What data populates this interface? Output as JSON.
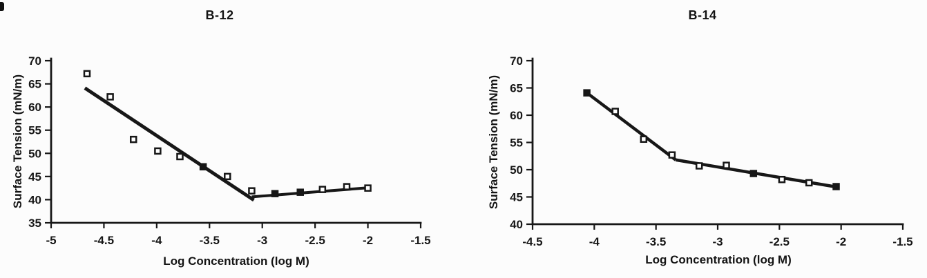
{
  "page": {
    "background": "#fcfcfc",
    "ink": "#171717"
  },
  "chart_data": [
    {
      "type": "scatter",
      "title": "B-12",
      "xlabel": "Log Concentration (log M)",
      "ylabel": "Surface Tension (mN/m)",
      "xlim": [
        -5,
        -1.5
      ],
      "ylim": [
        35,
        70
      ],
      "grid": false,
      "legend": null,
      "xticks": [
        {
          "v": -5,
          "label": "-5"
        },
        {
          "v": -4.5,
          "label": "-4.5"
        },
        {
          "v": -4,
          "label": "-4"
        },
        {
          "v": -3.5,
          "label": "-3.5"
        },
        {
          "v": -3,
          "label": "-3"
        },
        {
          "v": -2.5,
          "label": "-2.5"
        },
        {
          "v": -2,
          "label": "-2"
        },
        {
          "v": -1.5,
          "label": "-1.5"
        }
      ],
      "yticks": [
        {
          "v": 35,
          "label": "35"
        },
        {
          "v": 40,
          "label": "40"
        },
        {
          "v": 45,
          "label": "45"
        },
        {
          "v": 50,
          "label": "50"
        },
        {
          "v": 55,
          "label": "55"
        },
        {
          "v": 60,
          "label": "60"
        },
        {
          "v": 65,
          "label": "65"
        },
        {
          "v": 70,
          "label": "70"
        }
      ],
      "points": [
        {
          "x": -4.66,
          "y": 67.2,
          "filled": false
        },
        {
          "x": -4.44,
          "y": 62.2,
          "filled": false
        },
        {
          "x": -4.22,
          "y": 53.0,
          "filled": false
        },
        {
          "x": -3.99,
          "y": 50.5,
          "filled": false
        },
        {
          "x": -3.78,
          "y": 49.3,
          "filled": false
        },
        {
          "x": -3.56,
          "y": 47.1,
          "filled": true
        },
        {
          "x": -3.33,
          "y": 45.0,
          "filled": false
        },
        {
          "x": -3.1,
          "y": 41.9,
          "filled": false
        },
        {
          "x": -2.88,
          "y": 41.3,
          "filled": true
        },
        {
          "x": -2.64,
          "y": 41.6,
          "filled": true
        },
        {
          "x": -2.43,
          "y": 42.2,
          "filled": false
        },
        {
          "x": -2.2,
          "y": 42.8,
          "filled": false
        },
        {
          "x": -2.0,
          "y": 42.5,
          "filled": false
        }
      ],
      "trend_lines": [
        {
          "x1": -4.68,
          "y1": 64.1,
          "x2": -3.08,
          "y2": 39.9,
          "width": 5
        },
        {
          "x1": -3.1,
          "y1": 40.6,
          "x2": -1.98,
          "y2": 42.6,
          "width": 4
        }
      ]
    },
    {
      "type": "scatter",
      "title": "B-14",
      "xlabel": "Log Concentration (log M)",
      "ylabel": "Surface Tension (mN/m)",
      "xlim": [
        -4.5,
        -1.5
      ],
      "ylim": [
        40,
        70
      ],
      "grid": false,
      "legend": null,
      "xticks": [
        {
          "v": -4.5,
          "label": "-4.5"
        },
        {
          "v": -4,
          "label": "-4"
        },
        {
          "v": -3.5,
          "label": "-3.5"
        },
        {
          "v": -3,
          "label": "-3"
        },
        {
          "v": -2.5,
          "label": "-2.5"
        },
        {
          "v": -2,
          "label": "-2"
        },
        {
          "v": -1.5,
          "label": "-1.5"
        }
      ],
      "yticks": [
        {
          "v": 40,
          "label": "40"
        },
        {
          "v": 45,
          "label": "45"
        },
        {
          "v": 50,
          "label": "50"
        },
        {
          "v": 55,
          "label": "55"
        },
        {
          "v": 60,
          "label": "60"
        },
        {
          "v": 65,
          "label": "65"
        },
        {
          "v": 70,
          "label": "70"
        }
      ],
      "points": [
        {
          "x": -4.06,
          "y": 64.1,
          "filled": true
        },
        {
          "x": -3.83,
          "y": 60.7,
          "filled": false
        },
        {
          "x": -3.6,
          "y": 55.6,
          "filled": false
        },
        {
          "x": -3.37,
          "y": 52.7,
          "filled": false
        },
        {
          "x": -3.15,
          "y": 50.7,
          "filled": false
        },
        {
          "x": -2.93,
          "y": 50.8,
          "filled": false
        },
        {
          "x": -2.71,
          "y": 49.3,
          "filled": true
        },
        {
          "x": -2.48,
          "y": 48.2,
          "filled": false
        },
        {
          "x": -2.26,
          "y": 47.6,
          "filled": false
        },
        {
          "x": -2.04,
          "y": 46.9,
          "filled": true
        }
      ],
      "trend_lines": [
        {
          "x1": -4.06,
          "y1": 64.1,
          "x2": -3.34,
          "y2": 51.8,
          "width": 4.5
        },
        {
          "x1": -3.34,
          "y1": 51.8,
          "x2": -2.03,
          "y2": 46.8,
          "width": 4.5
        }
      ]
    }
  ]
}
